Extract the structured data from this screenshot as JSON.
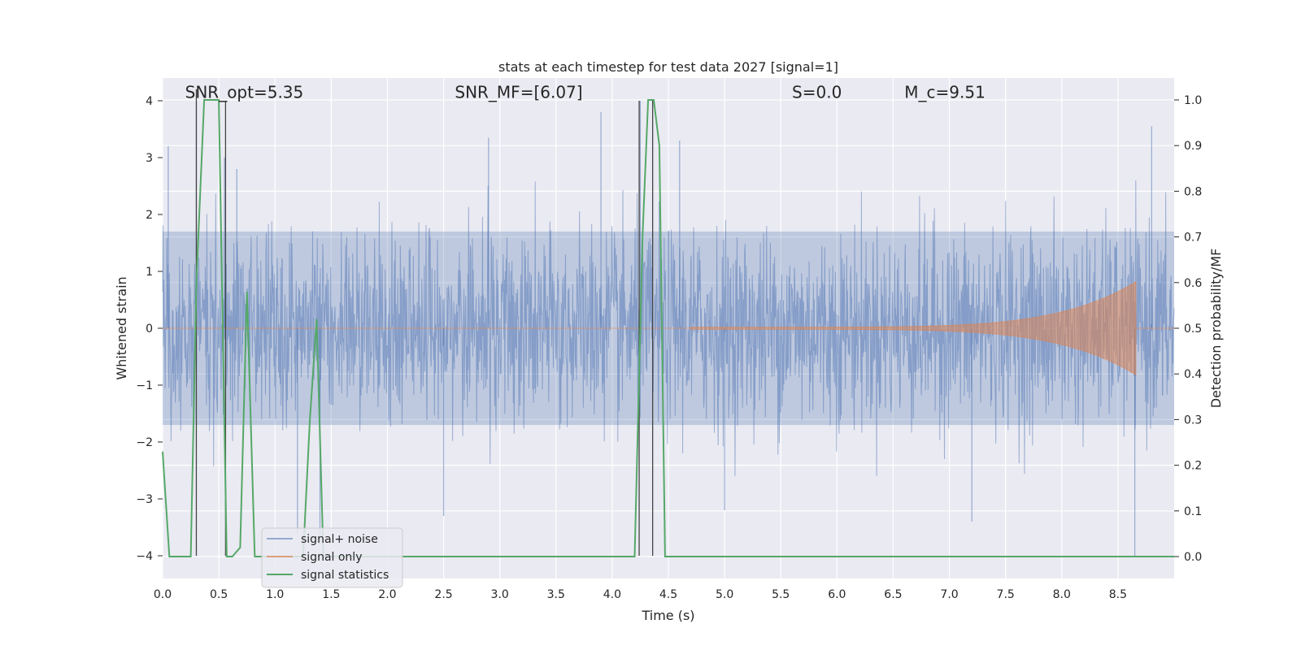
{
  "chart_data": {
    "type": "line",
    "title": "stats at each timestep for test data 2027 [signal=1]",
    "xlabel": "Time (s)",
    "ylabel": "Whitened strain",
    "y2label": "Detection probability/MF",
    "xlim": [
      0.0,
      9.0
    ],
    "ylim": [
      -4.4,
      4.4
    ],
    "y2lim": [
      -0.048,
      1.048
    ],
    "x_ticks": [
      0.0,
      0.5,
      1.0,
      1.5,
      2.0,
      2.5,
      3.0,
      3.5,
      4.0,
      4.5,
      5.0,
      5.5,
      6.0,
      6.5,
      7.0,
      7.5,
      8.0,
      8.5
    ],
    "x_tick_labels": [
      "0.0",
      "0.5",
      "1.0",
      "1.5",
      "2.0",
      "2.5",
      "3.0",
      "3.5",
      "4.0",
      "4.5",
      "5.0",
      "5.5",
      "6.0",
      "6.5",
      "7.0",
      "7.5",
      "8.0",
      "8.5"
    ],
    "y_ticks": [
      -4,
      -3,
      -2,
      -1,
      0,
      1,
      2,
      3,
      4
    ],
    "y_tick_labels": [
      "−4",
      "−3",
      "−2",
      "−1",
      "0",
      "1",
      "2",
      "3",
      "4"
    ],
    "y2_ticks": [
      0.0,
      0.1,
      0.2,
      0.3,
      0.4,
      0.5,
      0.6,
      0.7,
      0.8,
      0.9,
      1.0
    ],
    "y2_tick_labels": [
      "0.0",
      "0.1",
      "0.2",
      "0.3",
      "0.4",
      "0.5",
      "0.6",
      "0.7",
      "0.8",
      "0.9",
      "1.0"
    ],
    "grid": true,
    "legend_position": "lower-left",
    "annotations": [
      {
        "id": "snr-opt",
        "text": "SNR_opt=5.35",
        "x": 0.2,
        "y": 4.15
      },
      {
        "id": "snr-mf",
        "text": "SNR_MF=[6.07]",
        "x": 2.6,
        "y": 4.15
      },
      {
        "id": "s-stat",
        "text": "S=0.0",
        "x": 5.6,
        "y": 4.15
      },
      {
        "id": "mc",
        "text": "M_c=9.51",
        "x": 6.6,
        "y": 4.15
      }
    ],
    "series": [
      {
        "name": "signal+ noise",
        "color": "#4c72b0",
        "description_values": "whitened noise samples, mostly within ±1.6 with spikes to about ±3.5",
        "x_range": [
          0.0,
          9.0
        ],
        "envelope": [
          1.7,
          -1.7
        ],
        "spikes": [
          {
            "x": 0.05,
            "y": 3.2
          },
          {
            "x": 0.3,
            "y": 4.0
          },
          {
            "x": 0.55,
            "y": 3.0
          },
          {
            "x": 0.66,
            "y": 2.8
          },
          {
            "x": 2.9,
            "y": 3.35
          },
          {
            "x": 3.9,
            "y": 3.8
          },
          {
            "x": 4.25,
            "y": 4.0
          },
          {
            "x": 4.6,
            "y": 3.3
          },
          {
            "x": 8.8,
            "y": 3.55
          },
          {
            "x": 1.2,
            "y": -3.6
          },
          {
            "x": 2.5,
            "y": -3.3
          },
          {
            "x": 5.0,
            "y": -3.2
          },
          {
            "x": 7.2,
            "y": -3.4
          },
          {
            "x": 8.65,
            "y": -4.0
          },
          {
            "x": 1.4,
            "y": -3.8
          }
        ]
      },
      {
        "name": "signal only",
        "color": "#dd8452",
        "description_values": "chirp growing from ~0 at t=4.7 s to amplitude ~0.8 at t=8.66 s, then zero",
        "chirp_start": 4.7,
        "chirp_end": 8.66,
        "max_amplitude": 0.8
      },
      {
        "name": "signal statistics",
        "color": "#55a868",
        "axis": "right",
        "x": [
          0.0,
          0.06,
          0.11,
          0.25,
          0.3,
          0.37,
          0.4,
          0.45,
          0.5,
          0.57,
          0.62,
          0.69,
          0.75,
          0.82,
          1.25,
          1.31,
          1.37,
          1.43,
          2.0,
          4.2,
          4.27,
          4.32,
          4.37,
          4.42,
          4.47,
          4.52,
          4.75,
          5.0,
          6.0,
          7.0,
          8.0,
          9.0
        ],
        "values": [
          0.23,
          0.0,
          0.0,
          0.0,
          0.6,
          1.0,
          1.0,
          1.0,
          1.0,
          0.0,
          0.0,
          0.02,
          0.58,
          0.0,
          0.0,
          0.3,
          0.52,
          0.0,
          0.0,
          0.0,
          0.7,
          1.0,
          1.0,
          0.9,
          0.0,
          0.0,
          0.0,
          0.0,
          0.0,
          0.0,
          0.0,
          0.0
        ]
      }
    ],
    "detection_markers": [
      {
        "x": 0.3,
        "y_from": -4.0,
        "y_to": 4.2
      },
      {
        "x": 0.56,
        "y_from": -4.0,
        "y_to": 3.98
      },
      {
        "x": 4.24,
        "y_from": -4.0,
        "y_to": 4.0
      },
      {
        "x": 4.36,
        "y_from": -4.0,
        "y_to": 4.0
      }
    ]
  }
}
